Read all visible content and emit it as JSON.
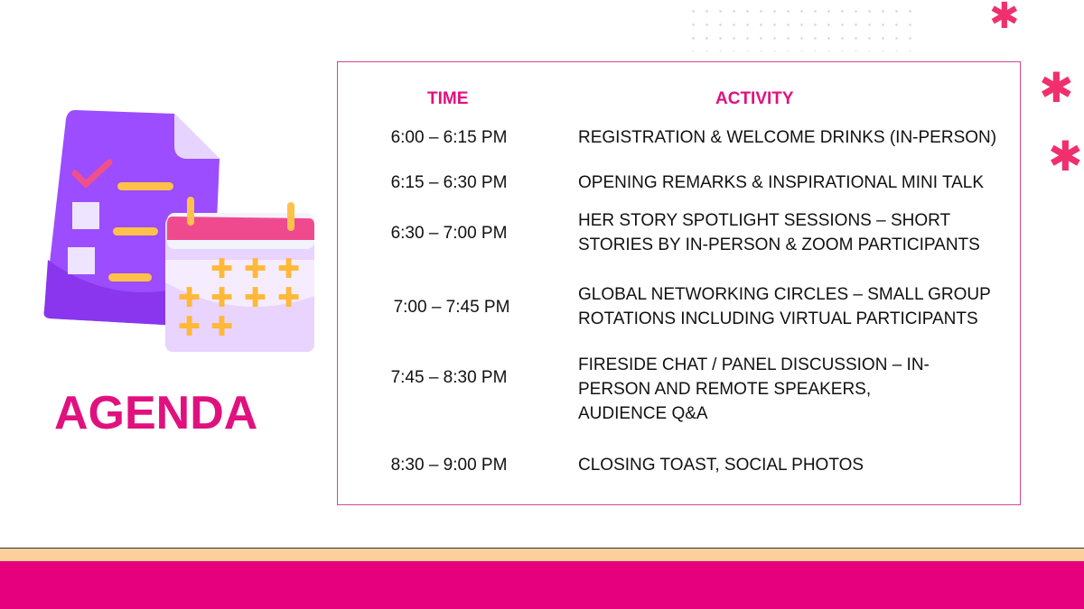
{
  "title": "AGENDA",
  "colors": {
    "accent": "#e0117f",
    "band": "#e6007e",
    "stripe": "#fbd09a",
    "illustration_purple": "#9b4dff"
  },
  "icons": [
    "checklist-document-icon",
    "calendar-icon",
    "asterisk-icon"
  ],
  "table": {
    "headers": {
      "time": "TIME",
      "activity": "ACTIVITY"
    },
    "rows": [
      {
        "time": "6:00 – 6:15 PM",
        "activity": "REGISTRATION & WELCOME DRINKS (IN-PERSON)"
      },
      {
        "time": "6:15 – 6:30 PM",
        "activity": "OPENING REMARKS & INSPIRATIONAL MINI TALK"
      },
      {
        "time": "6:30 – 7:00 PM",
        "activity": "HER STORY SPOTLIGHT SESSIONS – SHORT STORIES BY IN-PERSON & ZOOM PARTICIPANTS"
      },
      {
        "time": "7:00 – 7:45 PM",
        "activity": "GLOBAL NETWORKING CIRCLES – SMALL GROUP ROTATIONS INCLUDING VIRTUAL PARTICIPANTS"
      },
      {
        "time": "7:45 – 8:30 PM",
        "activity": "FIRESIDE CHAT / PANEL DISCUSSION – IN-PERSON AND REMOTE SPEAKERS, AUDIENCE Q&A"
      },
      {
        "time": "8:30 – 9:00 PM",
        "activity": "CLOSING TOAST, SOCIAL PHOTOS"
      }
    ]
  }
}
